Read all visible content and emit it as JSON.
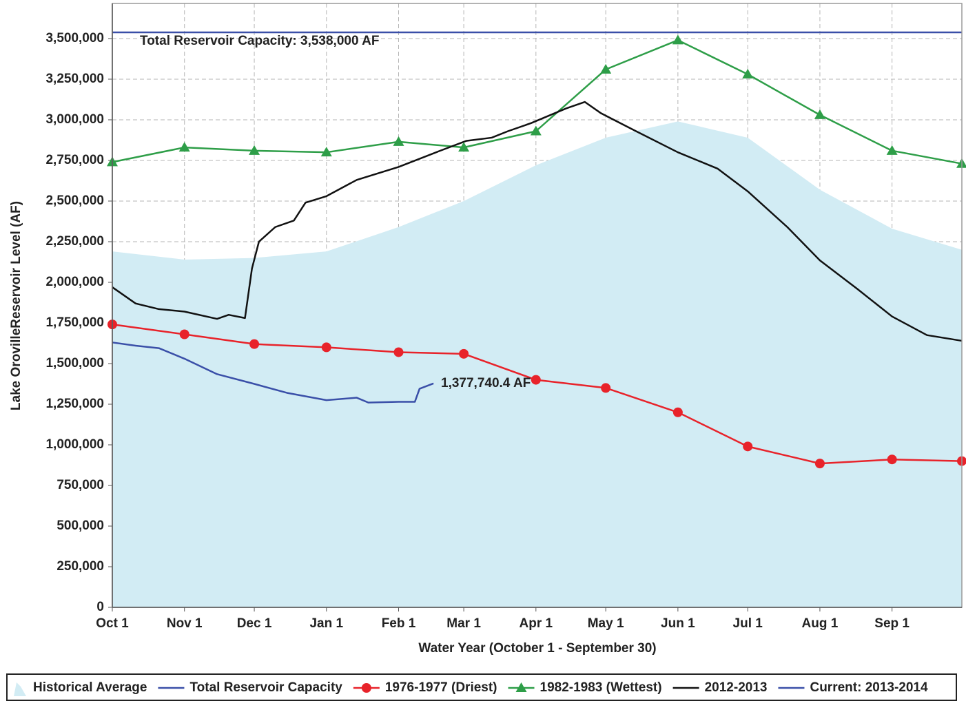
{
  "chart_data": {
    "type": "line",
    "x_label": "Water Year (October 1 - September 30)",
    "y_label": "Lake OrovilleReservoir Level (AF)",
    "xlim": [
      0,
      365
    ],
    "xticks": [
      {
        "value": 0,
        "label": "Oct 1"
      },
      {
        "value": 31,
        "label": "Nov 1"
      },
      {
        "value": 61,
        "label": "Dec 1"
      },
      {
        "value": 92,
        "label": "Jan 1"
      },
      {
        "value": 123,
        "label": "Feb 1"
      },
      {
        "value": 151,
        "label": "Mar 1"
      },
      {
        "value": 182,
        "label": "Apr 1"
      },
      {
        "value": 212,
        "label": "May 1"
      },
      {
        "value": 243,
        "label": "Jun 1"
      },
      {
        "value": 273,
        "label": "Jul 1"
      },
      {
        "value": 304,
        "label": "Aug 1"
      },
      {
        "value": 335,
        "label": "Sep 1"
      }
    ],
    "ylim": [
      0,
      3716000
    ],
    "yticks": [
      0,
      {
        "value": 250000,
        "label": "250,000"
      },
      {
        "value": 500000,
        "label": "500,000"
      },
      {
        "value": 750000,
        "label": "750,000"
      },
      {
        "value": 1000000,
        "label": "1,000,000"
      },
      {
        "value": 1250000,
        "label": "1,250,000"
      },
      {
        "value": 1500000,
        "label": "1,500,000"
      },
      {
        "value": 1750000,
        "label": "1,750,000"
      },
      {
        "value": 2000000,
        "label": "2,000,000"
      },
      {
        "value": 2250000,
        "label": "2,250,000"
      },
      {
        "value": 2500000,
        "label": "2,500,000"
      },
      {
        "value": 2750000,
        "label": "2,750,000"
      },
      {
        "value": 3000000,
        "label": "3,000,000"
      },
      {
        "value": 3250000,
        "label": "3,250,000"
      },
      {
        "value": 3500000,
        "label": "3,500,000"
      }
    ],
    "grid": true,
    "legend": "bottom",
    "series": [
      {
        "name": "Historical Average",
        "kind": "area",
        "color": "#d2ecf4",
        "x": [
          0,
          31,
          61,
          92,
          123,
          151,
          182,
          212,
          243,
          273,
          304,
          335,
          365
        ],
        "values": [
          2190000,
          2140000,
          2150000,
          2190000,
          2340000,
          2500000,
          2720000,
          2890000,
          2990000,
          2890000,
          2570000,
          2330000,
          2200000
        ]
      },
      {
        "name": "Total Reservoir Capacity",
        "kind": "line",
        "color": "#3a4fa8",
        "x": [
          0,
          365
        ],
        "values": [
          3538000,
          3538000
        ]
      },
      {
        "name": "1976-1977 (Driest)",
        "kind": "line",
        "marker": "circle",
        "color": "#e8232a",
        "x": [
          0,
          31,
          61,
          92,
          123,
          151,
          182,
          212,
          243,
          273,
          304,
          335,
          365
        ],
        "values": [
          1741000,
          1680000,
          1620000,
          1600000,
          1570000,
          1560000,
          1400000,
          1350000,
          1200000,
          990000,
          885000,
          910000,
          900000
        ]
      },
      {
        "name": "1982-1983 (Wettest)",
        "kind": "line",
        "marker": "triangle",
        "color": "#2e9e48",
        "x": [
          0,
          31,
          61,
          92,
          123,
          151,
          182,
          212,
          243,
          273,
          304,
          335,
          365
        ],
        "values": [
          2740000,
          2830000,
          2810000,
          2800000,
          2865000,
          2830000,
          2930000,
          3310000,
          3490000,
          3280000,
          3030000,
          2810000,
          2730000
        ]
      },
      {
        "name": "2012-2013",
        "kind": "line",
        "color": "#111111",
        "x": [
          0,
          10,
          20,
          31,
          45,
          50,
          57,
          60,
          63,
          70,
          78,
          83,
          92,
          105,
          123,
          140,
          152,
          163,
          170,
          180,
          195,
          203,
          210,
          225,
          243,
          260,
          273,
          290,
          304,
          320,
          335,
          350,
          365
        ],
        "values": [
          1970000,
          1870000,
          1835000,
          1820000,
          1775000,
          1800000,
          1780000,
          2085000,
          2250000,
          2340000,
          2380000,
          2490000,
          2530000,
          2630000,
          2710000,
          2805000,
          2870000,
          2890000,
          2930000,
          2980000,
          3070000,
          3110000,
          3040000,
          2930000,
          2800000,
          2700000,
          2560000,
          2340000,
          2135000,
          1960000,
          1790000,
          1675000,
          1640000
        ]
      },
      {
        "name": "Current: 2013-2014",
        "kind": "line",
        "color": "#3a4fa8",
        "x": [
          0,
          10,
          20,
          31,
          45,
          61,
          75,
          92,
          105,
          110,
          123,
          130,
          132,
          138
        ],
        "values": [
          1630000,
          1610000,
          1595000,
          1530000,
          1435000,
          1375000,
          1320000,
          1275000,
          1290000,
          1260000,
          1265000,
          1265000,
          1345000,
          1377740.4
        ]
      }
    ],
    "annotations": [
      {
        "text": "Total Reservoir Capacity: 3,538,000 AF",
        "color": "#3a4fa8"
      },
      {
        "text": "1,377,740.4 AF",
        "color": "#3a4fa8"
      }
    ]
  }
}
